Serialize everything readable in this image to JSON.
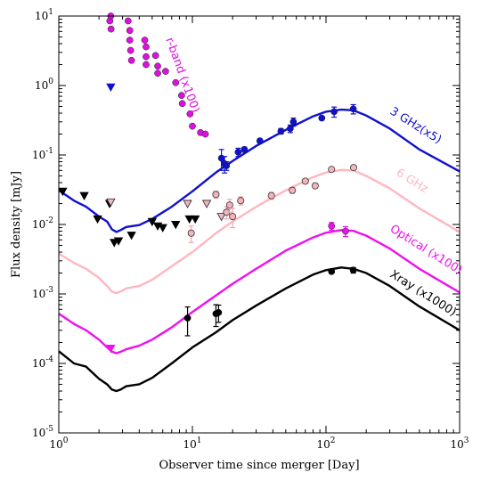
{
  "chart_data": {
    "type": "scatter",
    "xscale": "log",
    "yscale": "log",
    "xlim": [
      1,
      1000
    ],
    "ylim": [
      1e-05,
      10
    ],
    "xlabel": "Observer time since merger [Day]",
    "ylabel": "Flux density [mJy]",
    "x_ticks": [
      {
        "value": 1,
        "base": "10",
        "exp": "0"
      },
      {
        "value": 10,
        "base": "10",
        "exp": "1"
      },
      {
        "value": 100,
        "base": "10",
        "exp": "2"
      },
      {
        "value": 1000,
        "base": "10",
        "exp": "3"
      }
    ],
    "y_ticks": [
      {
        "value": 1e-05,
        "base": "10",
        "exp": "-5"
      },
      {
        "value": 0.0001,
        "base": "10",
        "exp": "-4"
      },
      {
        "value": 0.001,
        "base": "10",
        "exp": "-3"
      },
      {
        "value": 0.01,
        "base": "10",
        "exp": "-2"
      },
      {
        "value": 0.1,
        "base": "10",
        "exp": "-1"
      },
      {
        "value": 1,
        "base": "10",
        "exp": "0"
      },
      {
        "value": 10,
        "base": "10",
        "exp": "1"
      }
    ],
    "series": [
      {
        "name": "3 GHz(x5)",
        "color": "#1010d0",
        "model": [
          [
            1,
            0.031
          ],
          [
            1.3,
            0.022
          ],
          [
            1.6,
            0.018
          ],
          [
            2.0,
            0.013
          ],
          [
            2.3,
            0.011
          ],
          [
            2.5,
            0.0085
          ],
          [
            2.7,
            0.0078
          ],
          [
            2.9,
            0.0083
          ],
          [
            3.2,
            0.0092
          ],
          [
            4.0,
            0.0098
          ],
          [
            5.0,
            0.012
          ],
          [
            7.0,
            0.018
          ],
          [
            10,
            0.03
          ],
          [
            15,
            0.056
          ],
          [
            20,
            0.082
          ],
          [
            30,
            0.135
          ],
          [
            50,
            0.23
          ],
          [
            80,
            0.36
          ],
          [
            100,
            0.42
          ],
          [
            130,
            0.45
          ],
          [
            160,
            0.44
          ],
          [
            200,
            0.37
          ],
          [
            300,
            0.24
          ],
          [
            500,
            0.12
          ],
          [
            1000,
            0.058
          ]
        ],
        "points": [
          [
            16.5,
            0.09,
            0.03
          ],
          [
            17.4,
            0.075,
            0.02
          ],
          [
            18.0,
            0.07,
            0.01
          ],
          [
            22.0,
            0.11,
            0.015
          ],
          [
            24.5,
            0.12,
            0.01
          ],
          [
            32,
            0.16,
            0.01
          ],
          [
            46,
            0.22,
            0.02
          ],
          [
            54,
            0.24,
            0.03
          ],
          [
            57,
            0.3,
            0.04
          ],
          [
            93,
            0.34,
            0.02
          ],
          [
            115,
            0.42,
            0.07
          ],
          [
            160,
            0.46,
            0.07
          ]
        ],
        "upper_limits": [
          [
            2.45,
            0.95
          ]
        ]
      },
      {
        "name": "6 GHz",
        "color": "#ffb6c1",
        "model": [
          [
            1,
            0.0038
          ],
          [
            1.3,
            0.0028
          ],
          [
            1.6,
            0.0023
          ],
          [
            2.0,
            0.0017
          ],
          [
            2.3,
            0.0013
          ],
          [
            2.5,
            0.00108
          ],
          [
            2.7,
            0.00103
          ],
          [
            2.9,
            0.00108
          ],
          [
            3.2,
            0.0012
          ],
          [
            4.0,
            0.0013
          ],
          [
            5.0,
            0.0016
          ],
          [
            7.0,
            0.0025
          ],
          [
            10,
            0.004
          ],
          [
            15,
            0.0075
          ],
          [
            20,
            0.011
          ],
          [
            30,
            0.018
          ],
          [
            50,
            0.031
          ],
          [
            80,
            0.048
          ],
          [
            100,
            0.056
          ],
          [
            130,
            0.061
          ],
          [
            160,
            0.06
          ],
          [
            200,
            0.05
          ],
          [
            300,
            0.033
          ],
          [
            500,
            0.017
          ],
          [
            1000,
            0.0078
          ]
        ],
        "points": [
          [
            9.8,
            0.0075,
            0.002
          ],
          [
            15,
            0.027,
            0.003
          ],
          [
            18,
            0.015,
            0.003
          ],
          [
            19,
            0.019,
            0.004
          ],
          [
            20,
            0.013,
            0.004
          ],
          [
            23,
            0.022,
            0.003
          ],
          [
            39,
            0.026,
            0.003
          ],
          [
            56,
            0.031,
            0.003
          ],
          [
            70,
            0.042,
            0.003
          ],
          [
            83,
            0.036,
            0.003
          ],
          [
            110,
            0.062,
            0.003
          ],
          [
            161,
            0.066,
            0.003
          ]
        ],
        "upper_limits": [
          [
            2.45,
            0.021
          ],
          [
            9.2,
            0.02
          ],
          [
            12.8,
            0.02
          ],
          [
            16.5,
            0.013
          ]
        ]
      },
      {
        "name": "Optical (x100)",
        "color": "#ee10ee",
        "model": [
          [
            1,
            0.00052
          ],
          [
            1.3,
            0.00037
          ],
          [
            1.6,
            0.0003
          ],
          [
            2.0,
            0.00022
          ],
          [
            2.3,
            0.00017
          ],
          [
            2.5,
            0.000148
          ],
          [
            2.7,
            0.00014
          ],
          [
            2.9,
            0.000147
          ],
          [
            3.2,
            0.00016
          ],
          [
            4.0,
            0.00018
          ],
          [
            5.0,
            0.00022
          ],
          [
            7.0,
            0.00033
          ],
          [
            10,
            0.00055
          ],
          [
            15,
            0.00095
          ],
          [
            20,
            0.0014
          ],
          [
            30,
            0.0023
          ],
          [
            50,
            0.0042
          ],
          [
            80,
            0.0065
          ],
          [
            100,
            0.0076
          ],
          [
            130,
            0.0083
          ],
          [
            160,
            0.0081
          ],
          [
            200,
            0.0069
          ],
          [
            300,
            0.0045
          ],
          [
            500,
            0.0023
          ],
          [
            1000,
            0.00105
          ]
        ],
        "points": [
          [
            110,
            0.0095,
            0.0012
          ],
          [
            140,
            0.008,
            0.0013
          ]
        ],
        "upper_limits": [
          [
            2.45,
            0.000165
          ]
        ]
      },
      {
        "name": "Xray (x1000)",
        "color": "#000000",
        "model": [
          [
            1,
            0.00015
          ],
          [
            1.3,
            0.0001
          ],
          [
            1.6,
            9e-05
          ],
          [
            2.0,
            6e-05
          ],
          [
            2.3,
            5e-05
          ],
          [
            2.5,
            4.2e-05
          ],
          [
            2.7,
            4e-05
          ],
          [
            2.9,
            4.2e-05
          ],
          [
            3.2,
            4.7e-05
          ],
          [
            4.0,
            5e-05
          ],
          [
            5.0,
            6.2e-05
          ],
          [
            7.0,
            0.0001
          ],
          [
            10,
            0.00017
          ],
          [
            15,
            0.00028
          ],
          [
            20,
            0.00042
          ],
          [
            30,
            0.00068
          ],
          [
            50,
            0.0012
          ],
          [
            80,
            0.0019
          ],
          [
            100,
            0.0022
          ],
          [
            130,
            0.0024
          ],
          [
            160,
            0.0023
          ],
          [
            200,
            0.002
          ],
          [
            300,
            0.0013
          ],
          [
            500,
            0.00066
          ],
          [
            1000,
            0.0003
          ]
        ],
        "points": [
          [
            9.2,
            0.00045,
            0.0002
          ],
          [
            15,
            0.00052,
            0.00018
          ],
          [
            15.7,
            0.00054,
            0.00015
          ],
          [
            110,
            0.0021,
            0.0001
          ],
          [
            160,
            0.0022,
            0.0002
          ]
        ],
        "upper_limits": []
      },
      {
        "name": "r-band (x100)",
        "color": "#dd10dd",
        "model": [],
        "points": [
          [
            2.41,
            8.5,
            0
          ],
          [
            2.45,
            10,
            0
          ],
          [
            2.46,
            6.5,
            0
          ],
          [
            3.3,
            8.5,
            0
          ],
          [
            3.4,
            6.2,
            0
          ],
          [
            3.4,
            4.5,
            0
          ],
          [
            3.45,
            3.2,
            0
          ],
          [
            3.5,
            2.3,
            0
          ],
          [
            4.4,
            4.5,
            0
          ],
          [
            4.5,
            3.6,
            0
          ],
          [
            4.5,
            2.6,
            0
          ],
          [
            4.5,
            2.0,
            0
          ],
          [
            5.3,
            2.7,
            0
          ],
          [
            5.5,
            1.9,
            0
          ],
          [
            5.5,
            1.5,
            0
          ],
          [
            6.3,
            1.6,
            0
          ],
          [
            7.5,
            1.1,
            0
          ],
          [
            8.3,
            0.72,
            0
          ],
          [
            8.4,
            0.55,
            0
          ],
          [
            9.6,
            0.39,
            0
          ],
          [
            10.0,
            0.26,
            0
          ],
          [
            11.5,
            0.21,
            0
          ],
          [
            12.5,
            0.2,
            0
          ]
        ],
        "upper_limits": []
      }
    ],
    "radio_upper_limits_black": [
      [
        1.07,
        0.03
      ],
      [
        1.55,
        0.026
      ],
      [
        1.95,
        0.012
      ],
      [
        2.4,
        0.02
      ],
      [
        2.6,
        0.0055
      ],
      [
        2.8,
        0.0058
      ],
      [
        3.5,
        0.007
      ],
      [
        5.0,
        0.011
      ],
      [
        5.5,
        0.0095
      ],
      [
        6.0,
        0.009
      ],
      [
        7.5,
        0.01
      ],
      [
        9.5,
        0.012
      ],
      [
        10.5,
        0.012
      ]
    ]
  }
}
